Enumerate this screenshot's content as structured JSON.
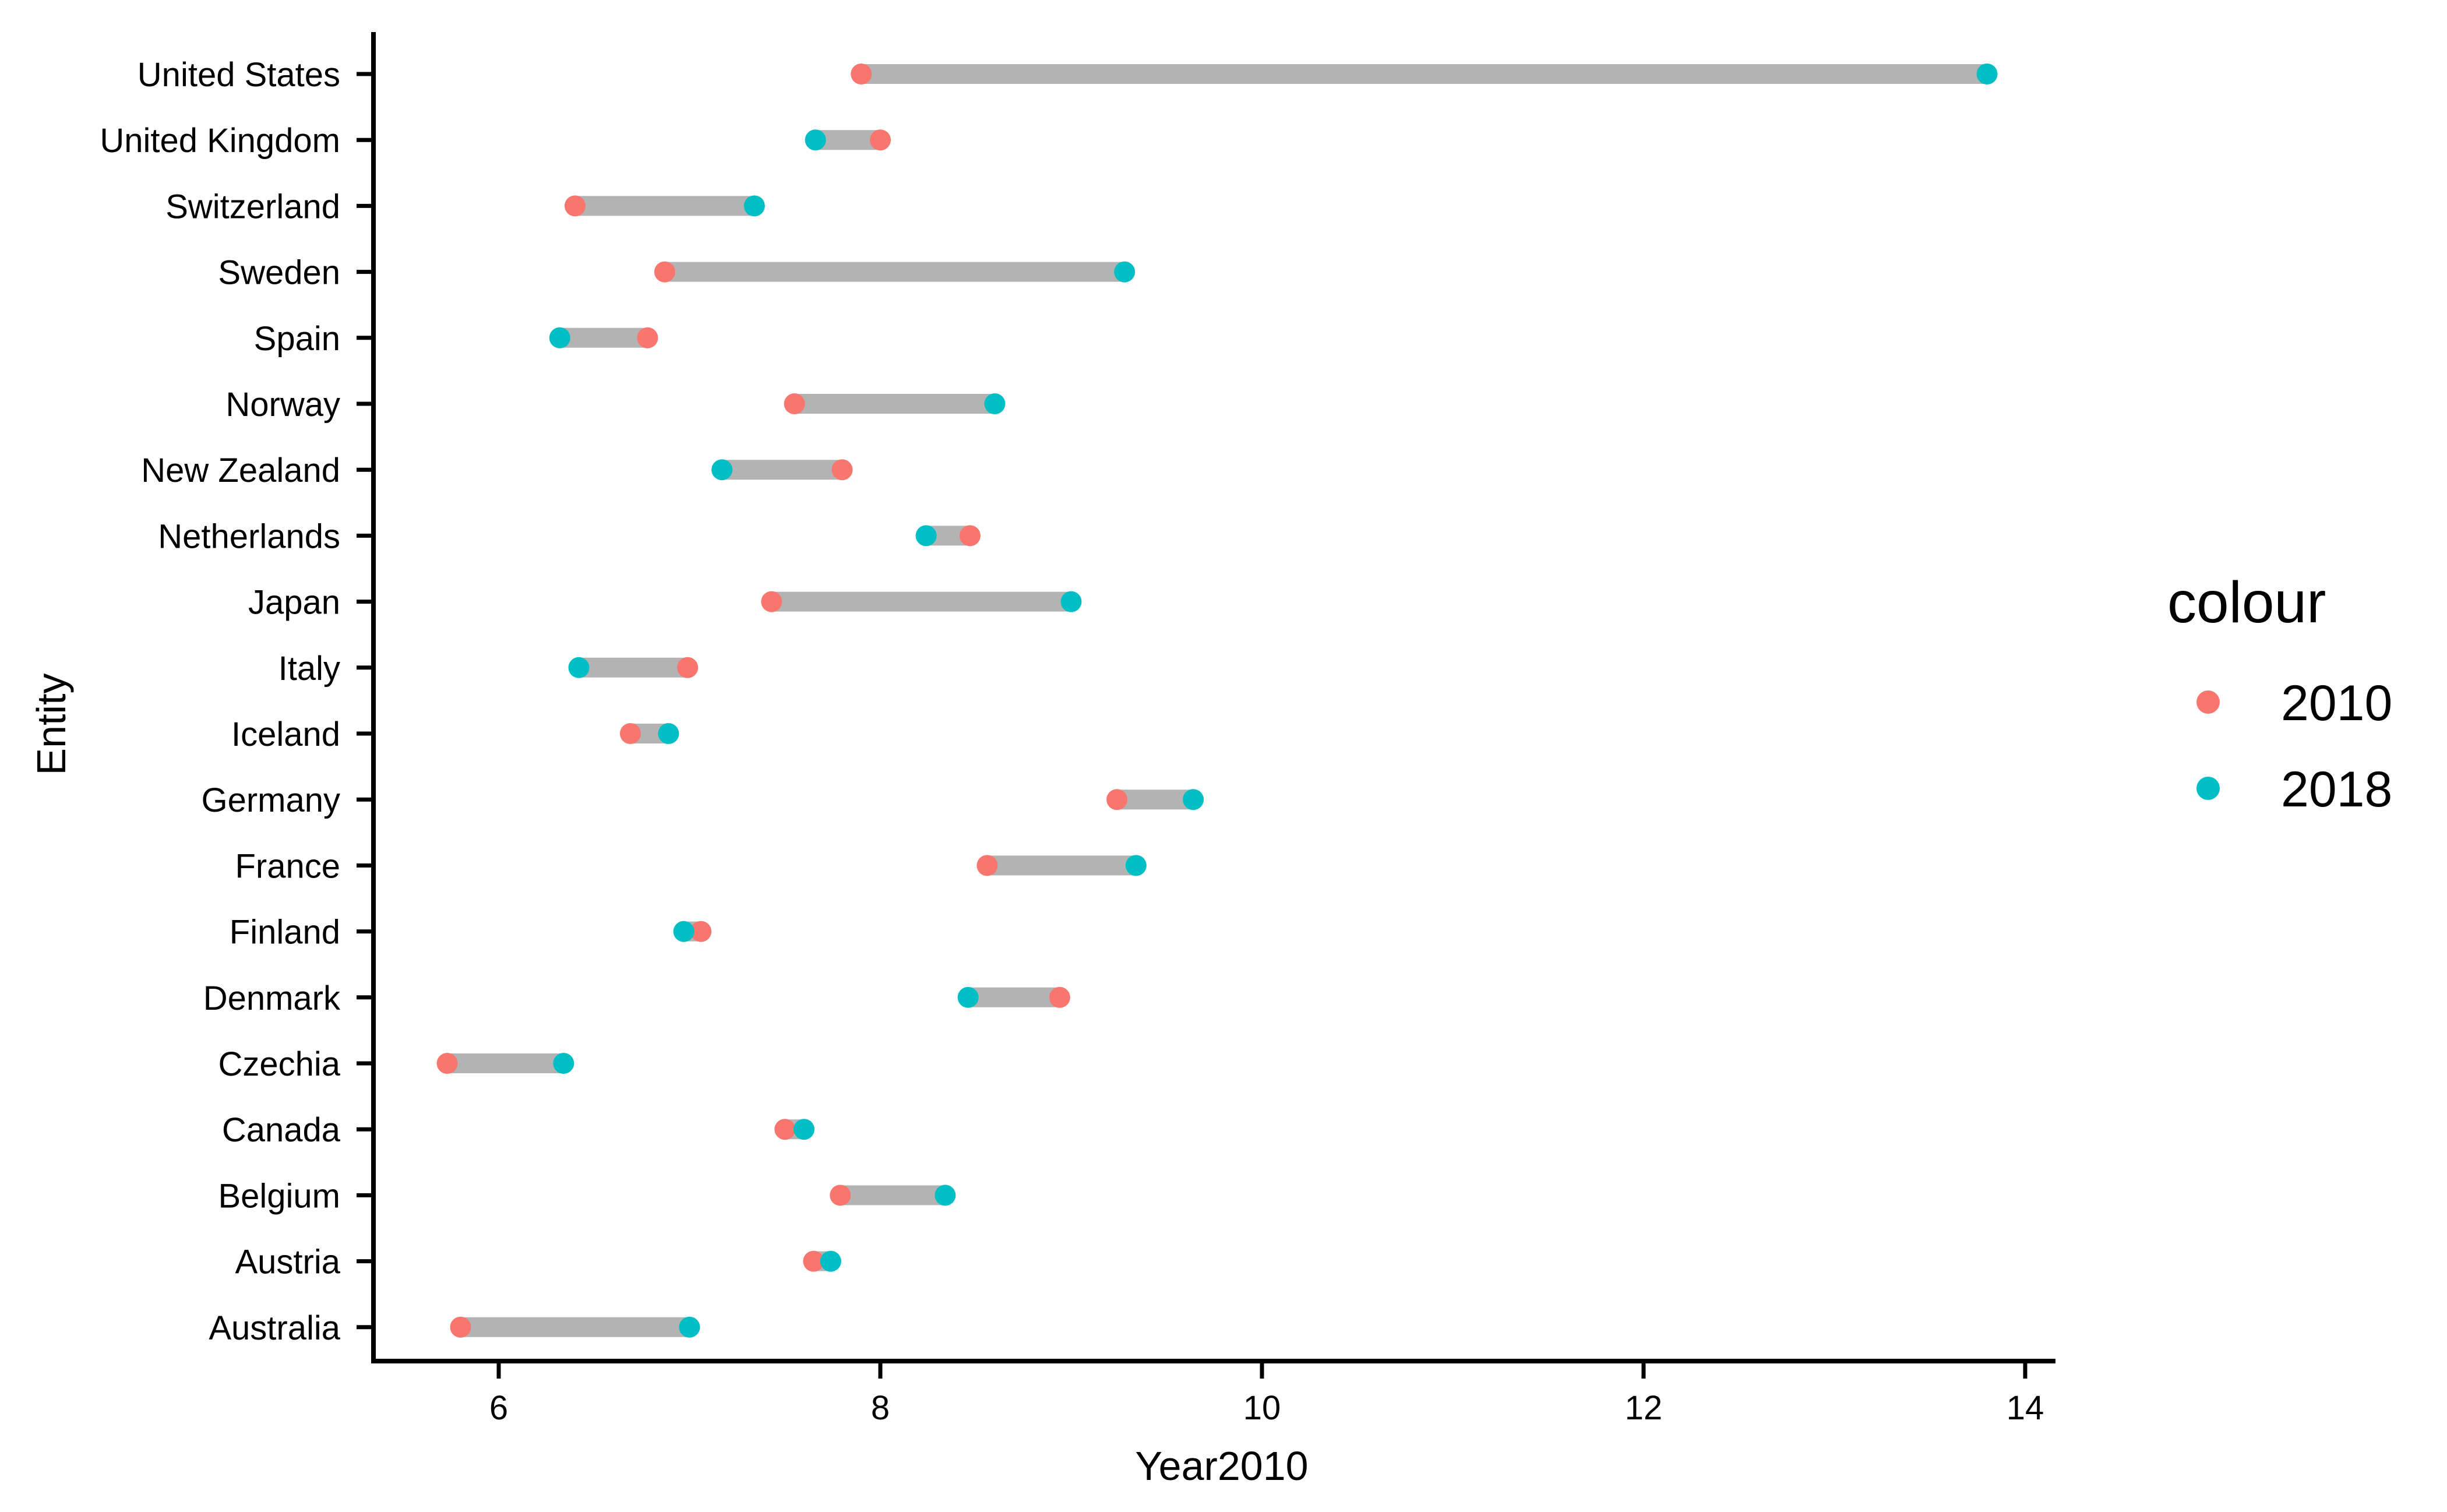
{
  "chart_data": {
    "type": "dumbbell",
    "title": "",
    "xlabel": "Year2010",
    "ylabel": "Entity",
    "xlim": [
      5.35,
      14.2
    ],
    "xticks": [
      6,
      8,
      10,
      12,
      14
    ],
    "grid": false,
    "legend": {
      "title": "colour",
      "position": "right",
      "entries": [
        {
          "label": "2010",
          "color": "#F8766D"
        },
        {
          "label": "2018",
          "color": "#00BFC4"
        }
      ]
    },
    "segment_color": "#B3B3B3",
    "categories": [
      "United States",
      "United Kingdom",
      "Switzerland",
      "Sweden",
      "Spain",
      "Norway",
      "New Zealand",
      "Netherlands",
      "Japan",
      "Italy",
      "Iceland",
      "Germany",
      "France",
      "Finland",
      "Denmark",
      "Czechia",
      "Canada",
      "Belgium",
      "Austria",
      "Australia"
    ],
    "series": [
      {
        "name": "2010",
        "color": "#F8766D",
        "values": [
          7.9,
          8.0,
          6.4,
          6.87,
          6.78,
          7.55,
          7.8,
          8.47,
          7.43,
          6.99,
          6.69,
          9.24,
          8.56,
          7.06,
          8.94,
          5.73,
          7.5,
          7.79,
          7.65,
          5.8
        ]
      },
      {
        "name": "2018",
        "color": "#00BFC4",
        "values": [
          13.8,
          7.66,
          7.34,
          9.28,
          6.32,
          8.6,
          7.17,
          8.24,
          9.0,
          6.42,
          6.89,
          9.64,
          9.34,
          6.97,
          8.46,
          6.34,
          7.6,
          8.34,
          7.74,
          7.0
        ]
      }
    ]
  }
}
